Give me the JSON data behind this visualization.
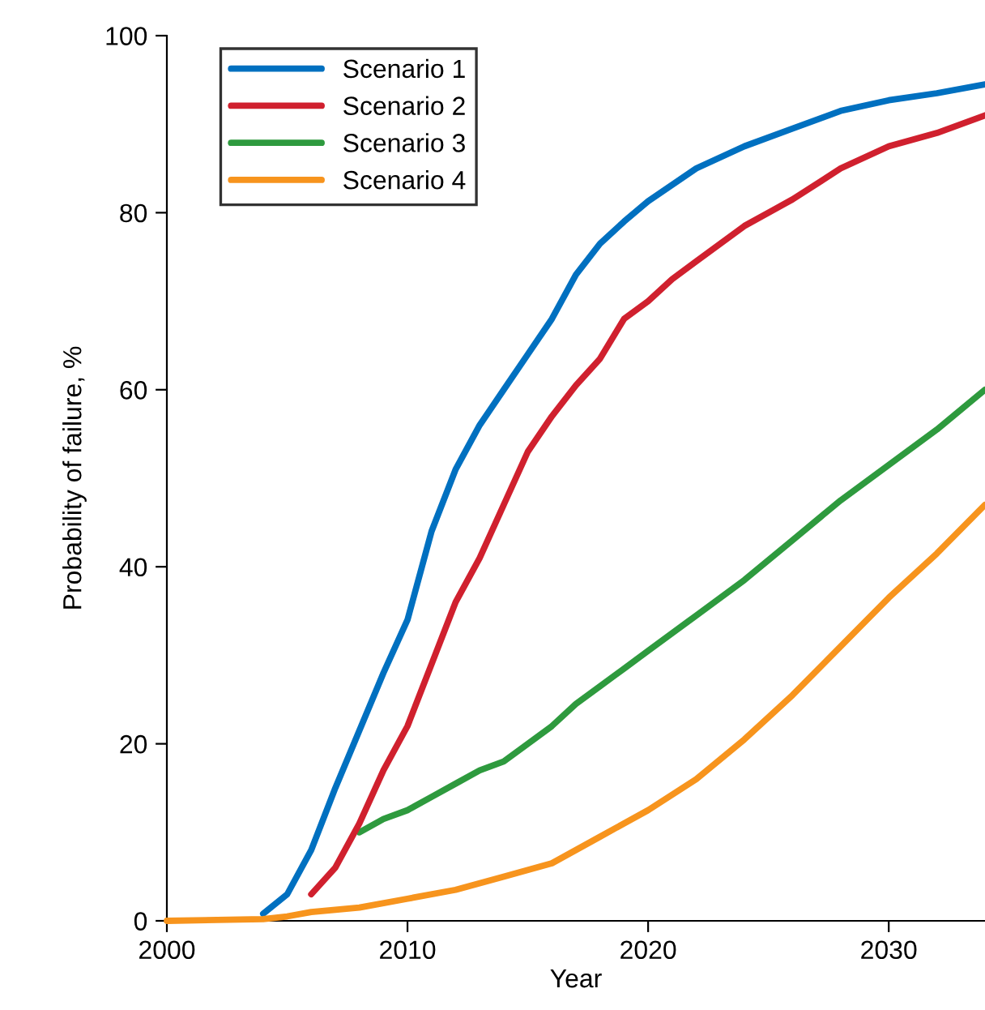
{
  "chart_data": {
    "type": "line",
    "xlabel": "Year",
    "ylabel": "Probability of failure, %",
    "xlim": [
      2000,
      2034
    ],
    "xticks": [
      2000,
      2010,
      2020,
      2030
    ],
    "ylim": [
      0,
      100
    ],
    "yticks": [
      0,
      20,
      40,
      60,
      80,
      100
    ],
    "grid": false,
    "legend": "top left",
    "marker": "none",
    "line_style": "solid",
    "series": [
      {
        "name": "Scenario 1",
        "color": "#0070c0",
        "x": [
          2004,
          2005,
          2006,
          2007,
          2008,
          2009,
          2010,
          2011,
          2012,
          2013,
          2014,
          2015,
          2016,
          2017,
          2018,
          2019,
          2020,
          2022,
          2024,
          2026,
          2028,
          2030,
          2032,
          2034
        ],
        "values": [
          0.8,
          3,
          8,
          15,
          21.5,
          28,
          34,
          44,
          51,
          56,
          60,
          64,
          68,
          73,
          76.5,
          79,
          81.3,
          85,
          87.5,
          89.5,
          91.5,
          92.7,
          93.5,
          94.5
        ]
      },
      {
        "name": "Scenario 2",
        "color": "#d0202e",
        "x": [
          2006,
          2007,
          2008,
          2009,
          2010,
          2011,
          2012,
          2013,
          2014,
          2015,
          2016,
          2017,
          2018,
          2019,
          2020,
          2021,
          2022,
          2023,
          2024,
          2026,
          2028,
          2030,
          2032,
          2034
        ],
        "values": [
          3,
          6,
          11,
          17,
          22,
          29,
          36,
          41,
          47,
          53,
          57,
          60.5,
          63.5,
          68,
          70,
          72.5,
          74.5,
          76.5,
          78.5,
          81.5,
          85,
          87.5,
          89,
          91
        ]
      },
      {
        "name": "Scenario 3",
        "color": "#2e9a3e",
        "x": [
          2008,
          2009,
          2010,
          2011,
          2012,
          2013,
          2014,
          2015,
          2016,
          2017,
          2018,
          2019,
          2020,
          2022,
          2024,
          2026,
          2028,
          2030,
          2032,
          2034
        ],
        "values": [
          10,
          11.5,
          12.5,
          14,
          15.5,
          17,
          18,
          20,
          22,
          24.5,
          26.5,
          28.5,
          30.5,
          34.5,
          38.5,
          43,
          47.5,
          51.5,
          55.5,
          60
        ]
      },
      {
        "name": "Scenario 4",
        "color": "#f7941d",
        "x": [
          2000,
          2004,
          2005,
          2006,
          2008,
          2010,
          2012,
          2014,
          2016,
          2018,
          2020,
          2022,
          2024,
          2026,
          2028,
          2030,
          2032,
          2034
        ],
        "values": [
          0,
          0.2,
          0.5,
          1,
          1.5,
          2.5,
          3.5,
          5,
          6.5,
          9.5,
          12.5,
          16,
          20.5,
          25.5,
          31,
          36.5,
          41.5,
          47
        ]
      }
    ]
  }
}
